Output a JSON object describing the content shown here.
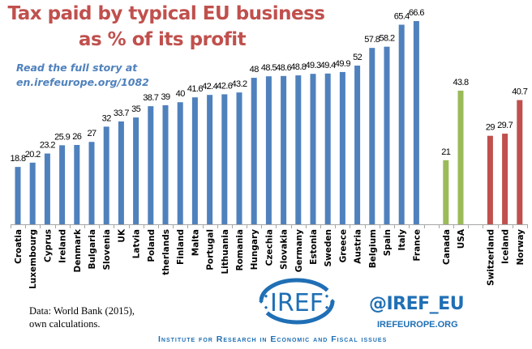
{
  "chart_data": {
    "type": "bar",
    "title_lines": [
      "Tax paid by typical EU business",
      "as % of its profit"
    ],
    "annotation_lines": [
      "Read the full story at",
      "en.irefeurope.org/1082"
    ],
    "categories": [
      "Croatia",
      "Luxembourg",
      "Cyprus",
      "Ireland",
      "Denmark",
      "Bulgaria",
      "Slovenia",
      "UK",
      "Latvia",
      "Poland",
      "therlands",
      "Finland",
      "Malta",
      "Portugal",
      "Lithuania",
      "Romania",
      "Hungary",
      "Czechia",
      "Slovakia",
      "Germany",
      "Estonia",
      "Sweden",
      "Greece",
      "Austria",
      "Belgium",
      "Spain",
      "Italy",
      "France",
      "",
      "Canada",
      "USA",
      "",
      "Switzerland",
      "Iceland",
      "Norway"
    ],
    "values": [
      18.8,
      20.2,
      23.2,
      25.9,
      26,
      27,
      32,
      33.7,
      35,
      38.7,
      39,
      40,
      41.6,
      42.4,
      42.6,
      43.2,
      48,
      48.5,
      48.6,
      48.8,
      49.3,
      49.4,
      49.9,
      52,
      57.8,
      58.2,
      65.4,
      66.6,
      null,
      21,
      43.8,
      null,
      29,
      29.7,
      40.7
    ],
    "value_labels": [
      "18.8",
      "20.2",
      "23.2",
      "25.9",
      "26",
      "27",
      "32",
      "33.7",
      "35",
      "38.7",
      "39",
      "40",
      "41.6",
      "42.4",
      "42.6",
      "43.2",
      "48",
      "48.5",
      "48.6",
      "48.8",
      "49.3",
      "49.4",
      "49.9",
      "52",
      "57.8",
      "58.2",
      "65.4",
      "66.6",
      "",
      "21",
      "43.8",
      "",
      "29",
      "29.7",
      "40.7"
    ],
    "groups": [
      "eu",
      "eu",
      "eu",
      "eu",
      "eu",
      "eu",
      "eu",
      "eu",
      "eu",
      "eu",
      "eu",
      "eu",
      "eu",
      "eu",
      "eu",
      "eu",
      "eu",
      "eu",
      "eu",
      "eu",
      "eu",
      "eu",
      "eu",
      "eu",
      "eu",
      "eu",
      "eu",
      "eu",
      "",
      "na",
      "na",
      "",
      "efta",
      "efta",
      "efta"
    ],
    "colors": {
      "eu": "#4f81bd",
      "na": "#9bbb59",
      "efta": "#c0504d",
      "title": "#c0504d"
    },
    "ylim": [
      0,
      68
    ],
    "grid": false,
    "xlabel": "",
    "ylabel": ""
  },
  "footer": {
    "source_lines": [
      "Data: World Bank (2015),",
      "own calculations."
    ],
    "logo_text": "IREF",
    "handle": "@IREF_EU",
    "website": "IREFEUROPE.ORG",
    "institute": "Institute for Research in Economic and Fiscal issues"
  }
}
